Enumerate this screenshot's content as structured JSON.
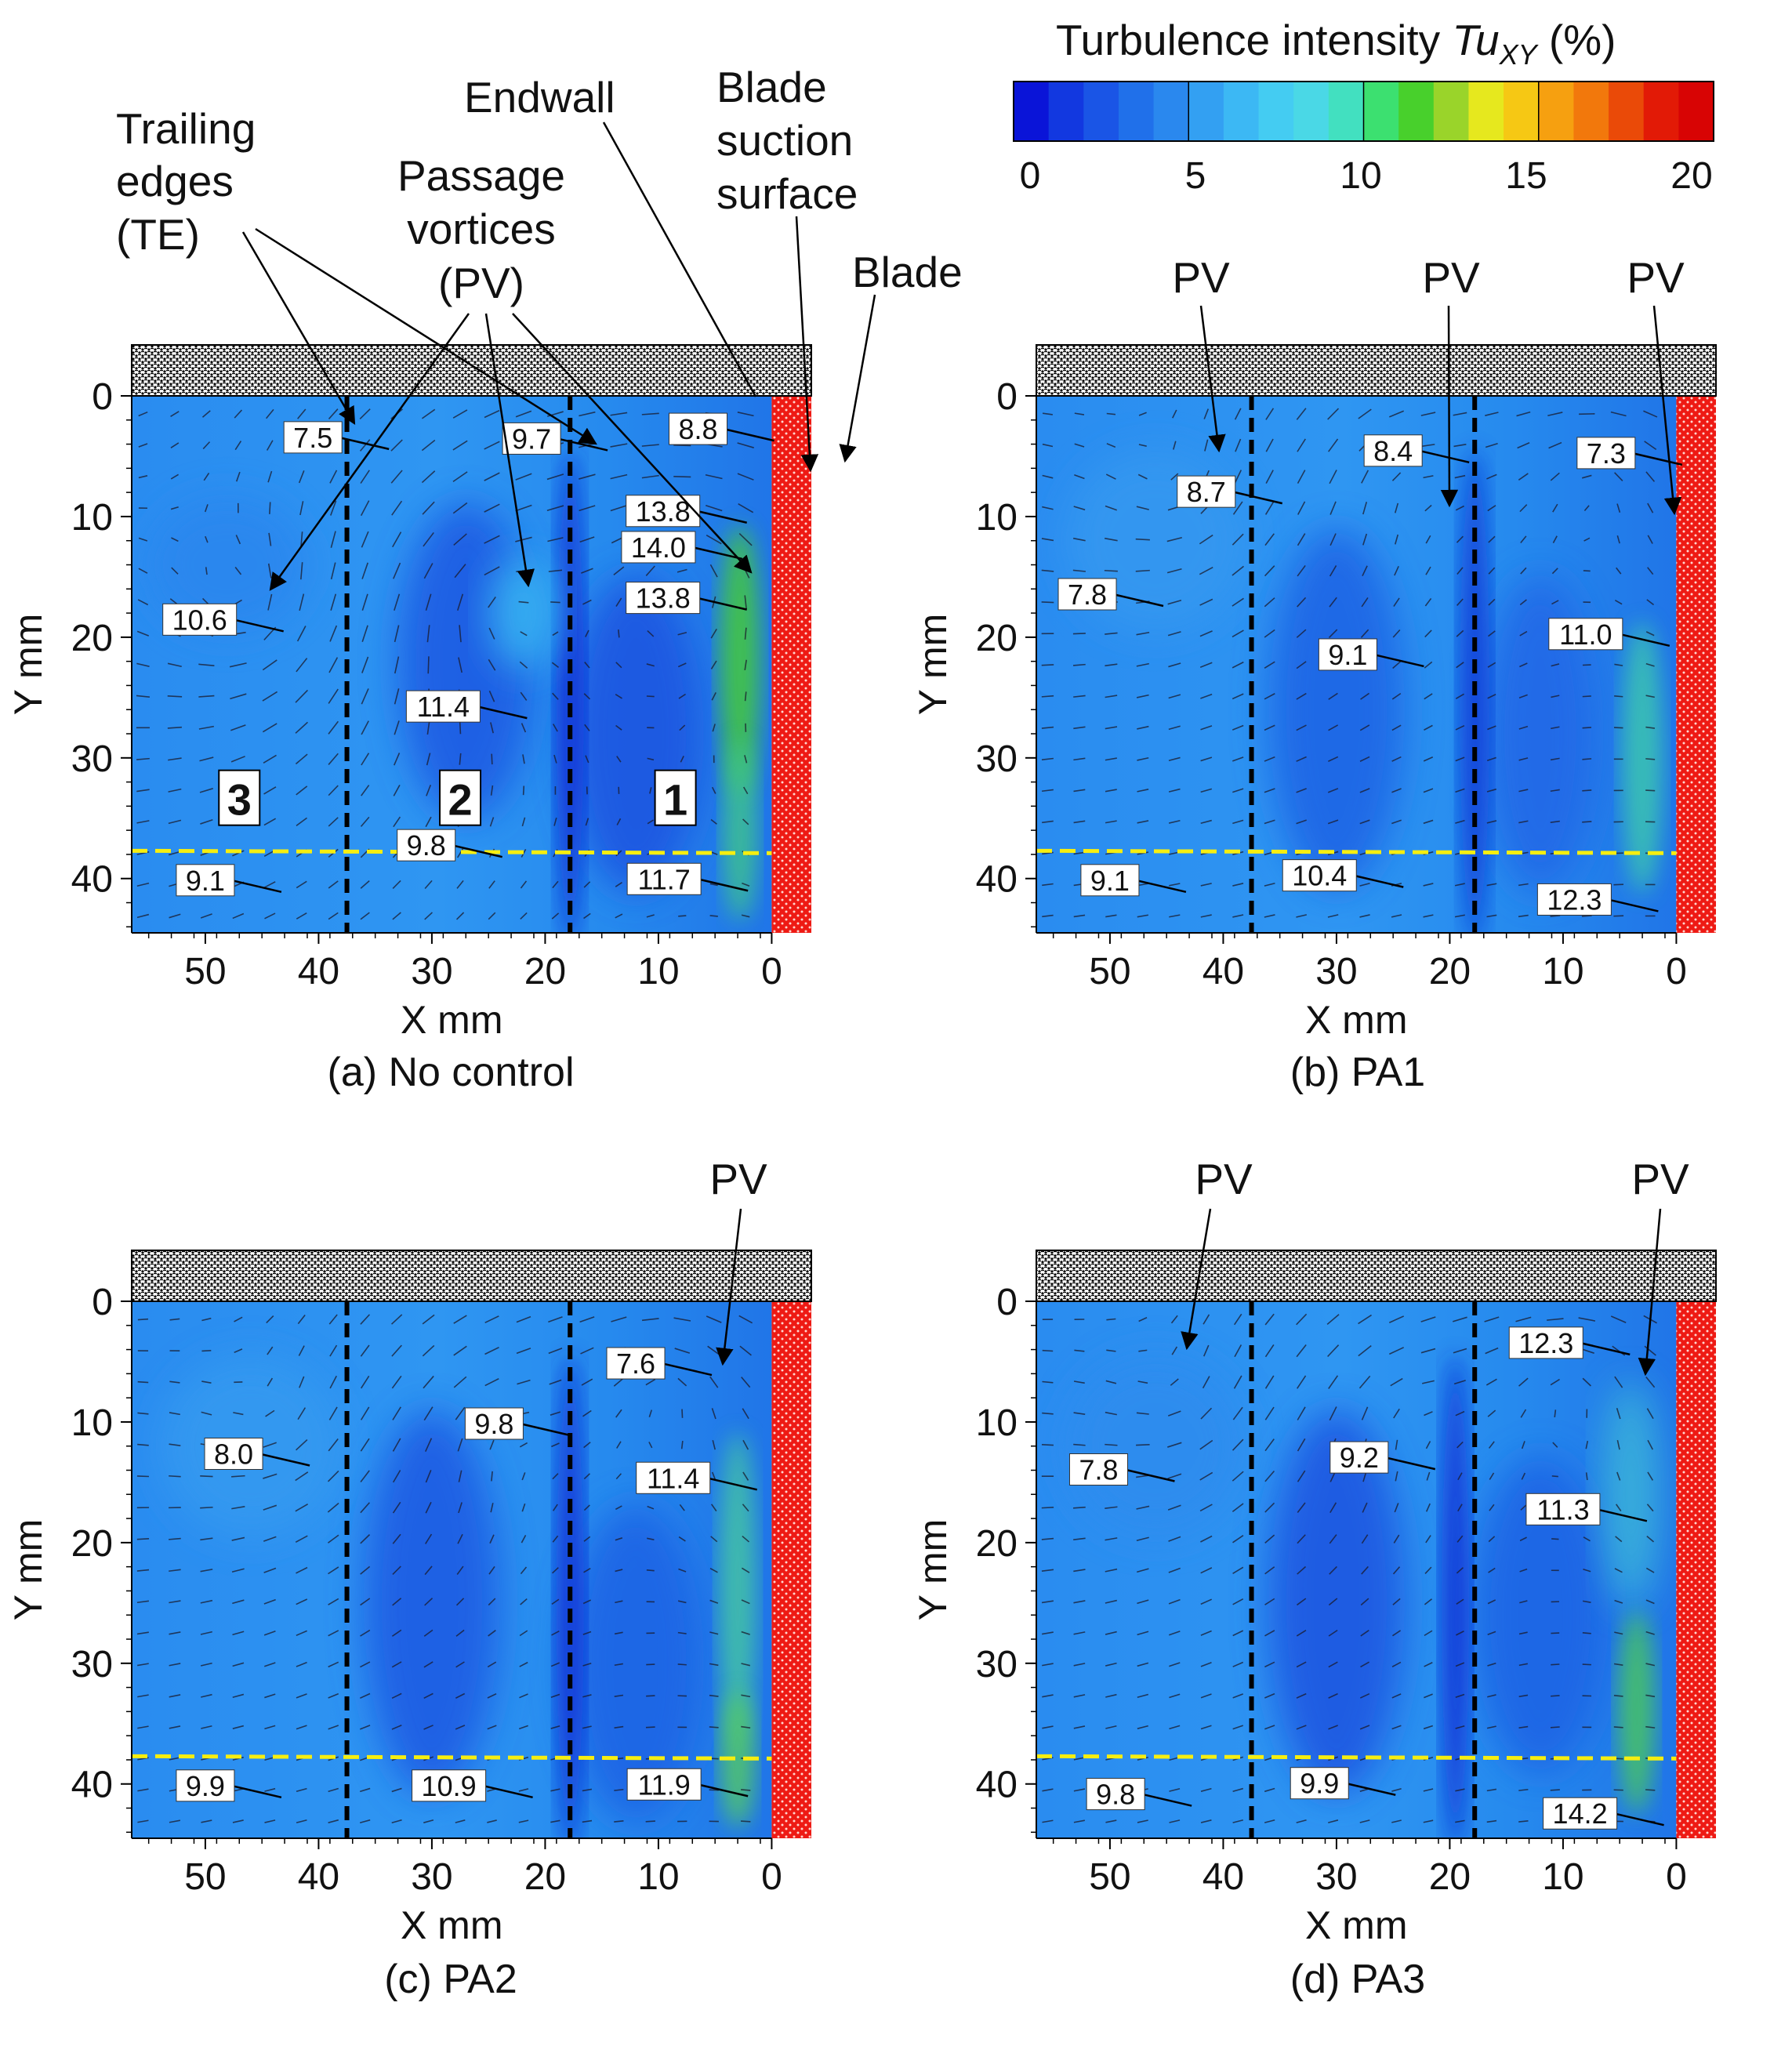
{
  "colorbar": {
    "title_prefix": "Turbulence intensity ",
    "title_symbol": "Tu",
    "title_subscript": "XY",
    "title_suffix": " (%)",
    "ticks": [
      "0",
      "5",
      "10",
      "15",
      "20"
    ],
    "colors": [
      "#0a14d8",
      "#1238e0",
      "#1a55e6",
      "#2070ea",
      "#2a88ee",
      "#33a0f2",
      "#3cb8f4",
      "#44ccf2",
      "#4ad8e6",
      "#42e0c0",
      "#3ce070",
      "#48d02c",
      "#9ad42a",
      "#e6e81e",
      "#f6c814",
      "#f6a010",
      "#f2780c",
      "#ea4a08",
      "#e21a06",
      "#d80404"
    ],
    "range": [
      0,
      20
    ]
  },
  "annotations": {
    "trailing_edges": [
      "Trailing",
      "edges",
      "(TE)"
    ],
    "passage_vortices": [
      "Passage",
      "vortices",
      "(PV)"
    ],
    "endwall": "Endwall",
    "blade_suction": [
      "Blade",
      "suction",
      "surface"
    ],
    "blade": "Blade",
    "pv": "PV"
  },
  "axes": {
    "xlabel": "X mm",
    "ylabel": "Y mm",
    "xticks": [
      "50",
      "40",
      "30",
      "20",
      "10",
      "0"
    ],
    "yticks": [
      "0",
      "10",
      "20",
      "30",
      "40"
    ]
  },
  "chart_data": [
    {
      "type": "heatmap",
      "title": "(a) No control",
      "xlabel": "X mm",
      "ylabel": "Y mm",
      "xlim": [
        56.5,
        -3.5
      ],
      "ylim": [
        0,
        44.5
      ],
      "colorbar_range": [
        0,
        20
      ],
      "trailing_edges_x": [
        37.5,
        17.8
      ],
      "yellow_line_y": 37.7,
      "regions": [
        {
          "label": "3",
          "x": 47,
          "y": 33.5
        },
        {
          "label": "2",
          "x": 27.5,
          "y": 33.5
        },
        {
          "label": "1",
          "x": 8.5,
          "y": 33.5
        }
      ],
      "values": [
        {
          "label": "7.5",
          "x": 40.5,
          "y": 3.5
        },
        {
          "label": "9.7",
          "x": 21.2,
          "y": 3.6
        },
        {
          "label": "8.8",
          "x": 6.5,
          "y": 2.8
        },
        {
          "label": "13.8",
          "x": 9.6,
          "y": 9.6
        },
        {
          "label": "14.0",
          "x": 10.0,
          "y": 12.6
        },
        {
          "label": "13.8",
          "x": 9.6,
          "y": 16.8
        },
        {
          "label": "10.6",
          "x": 50.5,
          "y": 18.6
        },
        {
          "label": "11.4",
          "x": 29.0,
          "y": 25.8
        },
        {
          "label": "9.8",
          "x": 30.5,
          "y": 37.3
        },
        {
          "label": "9.1",
          "x": 50.0,
          "y": 40.2
        },
        {
          "label": "11.7",
          "x": 9.5,
          "y": 40.1
        }
      ]
    },
    {
      "type": "heatmap",
      "title": "(b) PA1",
      "xlabel": "X mm",
      "ylabel": "Y mm",
      "xlim": [
        56.5,
        -3.5
      ],
      "ylim": [
        0,
        44.5
      ],
      "colorbar_range": [
        0,
        20
      ],
      "trailing_edges_x": [
        37.5,
        17.8
      ],
      "yellow_line_y": 37.7,
      "values": [
        {
          "label": "8.7",
          "x": 41.5,
          "y": 8.0
        },
        {
          "label": "8.4",
          "x": 25.0,
          "y": 4.6
        },
        {
          "label": "7.3",
          "x": 6.2,
          "y": 4.8
        },
        {
          "label": "7.8",
          "x": 52.0,
          "y": 16.5
        },
        {
          "label": "9.1",
          "x": 29.0,
          "y": 21.5
        },
        {
          "label": "11.0",
          "x": 8.0,
          "y": 19.8
        },
        {
          "label": "9.1",
          "x": 50.0,
          "y": 40.2
        },
        {
          "label": "10.4",
          "x": 31.5,
          "y": 39.8
        },
        {
          "label": "12.3",
          "x": 9.0,
          "y": 41.8
        }
      ]
    },
    {
      "type": "heatmap",
      "title": "(c) PA2",
      "xlabel": "X mm",
      "ylabel": "Y mm",
      "xlim": [
        56.5,
        -3.5
      ],
      "ylim": [
        0,
        44.5
      ],
      "colorbar_range": [
        0,
        20
      ],
      "trailing_edges_x": [
        37.5,
        17.8
      ],
      "yellow_line_y": 37.7,
      "values": [
        {
          "label": "7.6",
          "x": 12.0,
          "y": 5.2
        },
        {
          "label": "9.8",
          "x": 24.5,
          "y": 10.2
        },
        {
          "label": "8.0",
          "x": 47.5,
          "y": 12.7
        },
        {
          "label": "11.4",
          "x": 8.7,
          "y": 14.7
        },
        {
          "label": "9.9",
          "x": 50.0,
          "y": 40.2
        },
        {
          "label": "10.9",
          "x": 28.5,
          "y": 40.2
        },
        {
          "label": "11.9",
          "x": 9.5,
          "y": 40.1
        }
      ]
    },
    {
      "type": "heatmap",
      "title": "(d) PA3",
      "xlabel": "X mm",
      "ylabel": "Y mm",
      "xlim": [
        56.5,
        -3.5
      ],
      "ylim": [
        0,
        44.5
      ],
      "colorbar_range": [
        0,
        20
      ],
      "trailing_edges_x": [
        37.5,
        17.8
      ],
      "yellow_line_y": 37.7,
      "values": [
        {
          "label": "12.3",
          "x": 11.5,
          "y": 3.5
        },
        {
          "label": "7.8",
          "x": 51.0,
          "y": 14.0
        },
        {
          "label": "9.2",
          "x": 28.0,
          "y": 13.0
        },
        {
          "label": "11.3",
          "x": 10.0,
          "y": 17.3
        },
        {
          "label": "9.8",
          "x": 49.5,
          "y": 40.9
        },
        {
          "label": "9.9",
          "x": 31.5,
          "y": 40.0
        },
        {
          "label": "14.2",
          "x": 8.5,
          "y": 42.5
        }
      ]
    }
  ]
}
